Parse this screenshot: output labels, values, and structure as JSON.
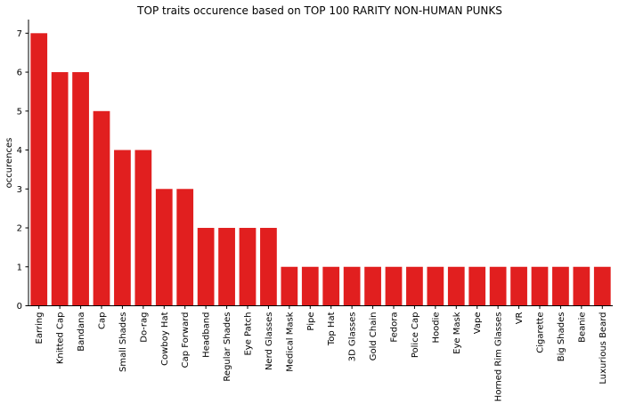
{
  "chart_data": {
    "type": "bar",
    "title": "TOP traits occurence based on TOP 100 RARITY NON-HUMAN PUNKS",
    "xlabel": "",
    "ylabel": "occurences",
    "ylim": [
      0,
      7.35
    ],
    "yticks": [
      0,
      1,
      2,
      3,
      4,
      5,
      6,
      7
    ],
    "grid": false,
    "bar_color": "#e11f1f",
    "categories": [
      "Earring",
      "Knitted Cap",
      "Bandana",
      "Cap",
      "Small Shades",
      "Do-rag",
      "Cowboy Hat",
      "Cap Forward",
      "Headband",
      "Regular Shades",
      "Eye Patch",
      "Nerd Glasses",
      "Medical Mask",
      "Pipe",
      "Top Hat",
      "3D Glasses",
      "Gold Chain",
      "Fedora",
      "Police Cap",
      "Hoodie",
      "Eye Mask",
      "Vape",
      "Horned Rim Glasses",
      "VR",
      "Cigarette",
      "Big Shades",
      "Beanie",
      "Luxurious Beard"
    ],
    "values": [
      7,
      6,
      6,
      5,
      4,
      4,
      3,
      3,
      2,
      2,
      2,
      2,
      1,
      1,
      1,
      1,
      1,
      1,
      1,
      1,
      1,
      1,
      1,
      1,
      1,
      1,
      1,
      1
    ]
  }
}
